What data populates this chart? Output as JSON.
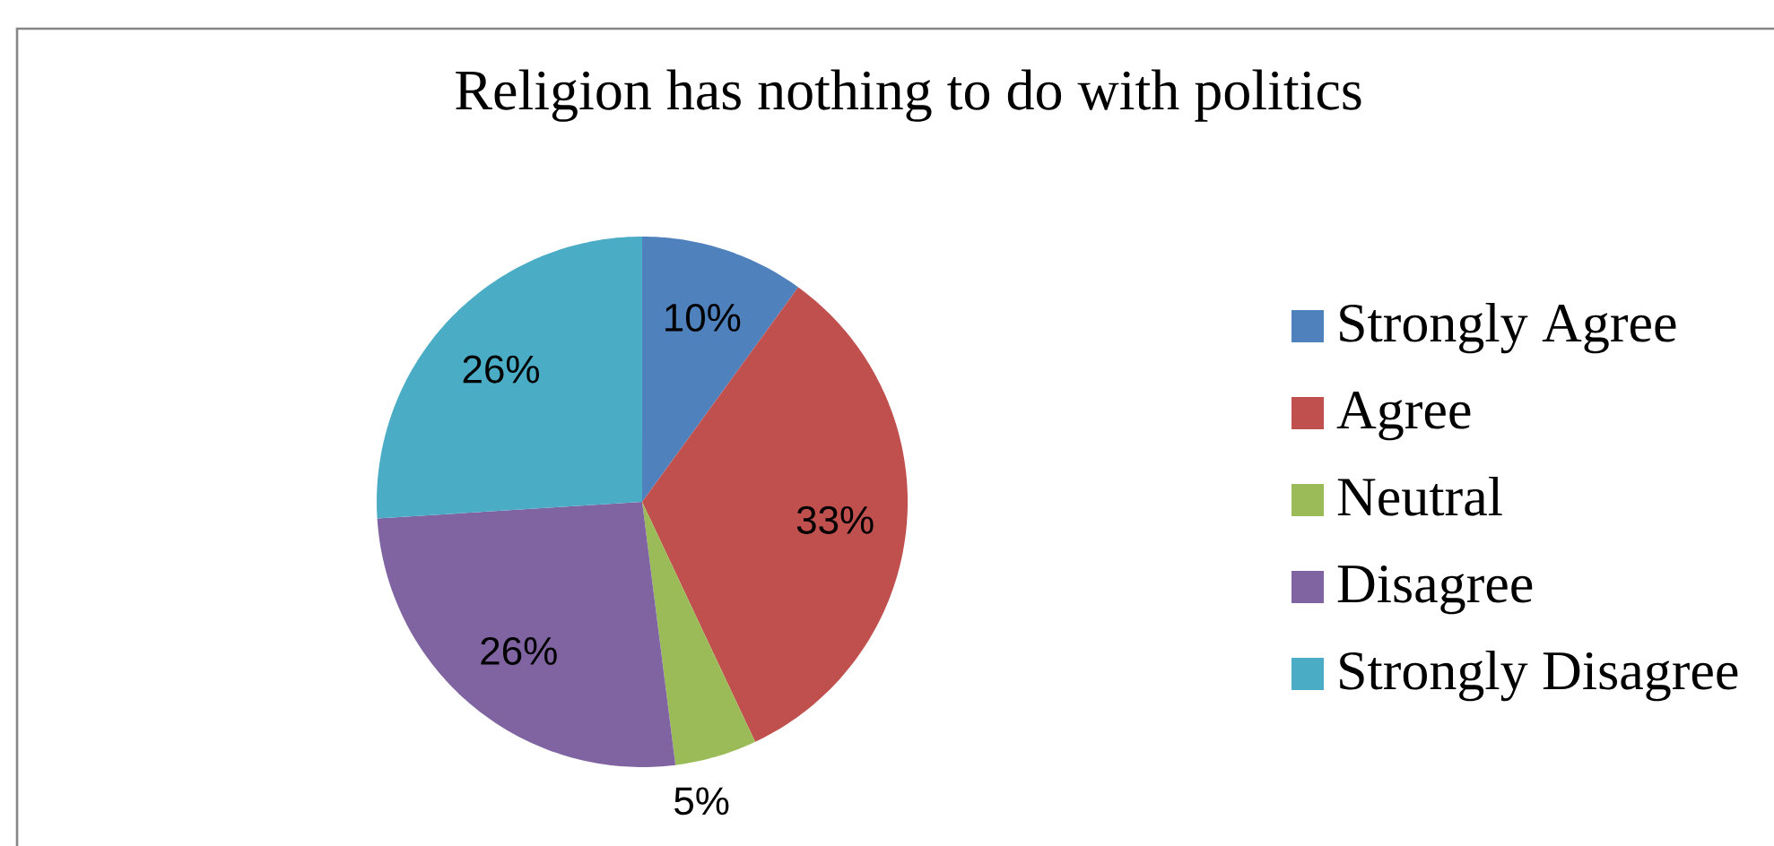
{
  "chart_data": {
    "type": "pie",
    "title": "Religion has nothing to do with politics",
    "categories": [
      "Strongly Agree",
      "Agree",
      "Neutral",
      "Disagree",
      "Strongly Disagree"
    ],
    "values": [
      10,
      33,
      5,
      26,
      26
    ],
    "colors": [
      "#4f81bd",
      "#c0504d",
      "#9bbb59",
      "#8064a2",
      "#4bacc6"
    ],
    "value_labels": [
      "10%",
      "33%",
      "5%",
      "26%",
      "26%"
    ],
    "legend": "right"
  }
}
